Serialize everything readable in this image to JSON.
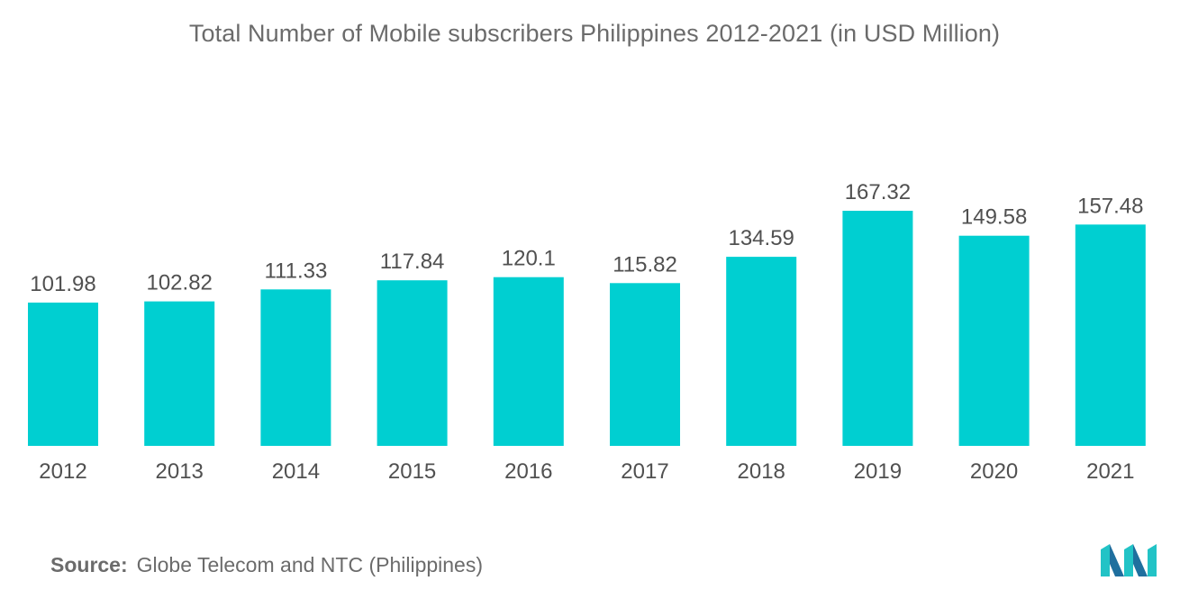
{
  "colors": {
    "bar": "#00cfd1",
    "text": "#505050",
    "title": "#6b6b6b",
    "logo_dark": "#1f6f9e",
    "logo_light": "#22c3c6"
  },
  "source": {
    "key": "Source:",
    "text": "Globe Telecom and NTC (Philippines)"
  },
  "logo": {
    "icon": "mordor-intelligence-logo-icon"
  },
  "chart_data": {
    "type": "bar",
    "title": "Total Number of Mobile subscribers Philippines 2012-2021 (in USD Million)",
    "xlabel": "",
    "ylabel": "",
    "categories": [
      "2012",
      "2013",
      "2014",
      "2015",
      "2016",
      "2017",
      "2018",
      "2019",
      "2020",
      "2021"
    ],
    "values": [
      101.98,
      102.82,
      111.33,
      117.84,
      120.1,
      115.82,
      134.59,
      167.32,
      149.58,
      157.48
    ],
    "value_labels": [
      "101.98",
      "102.82",
      "111.33",
      "117.84",
      "120.1",
      "115.82",
      "134.59",
      "167.32",
      "149.58",
      "157.48"
    ],
    "ylim": [
      0,
      167.32
    ],
    "grid": false,
    "legend": "none"
  }
}
